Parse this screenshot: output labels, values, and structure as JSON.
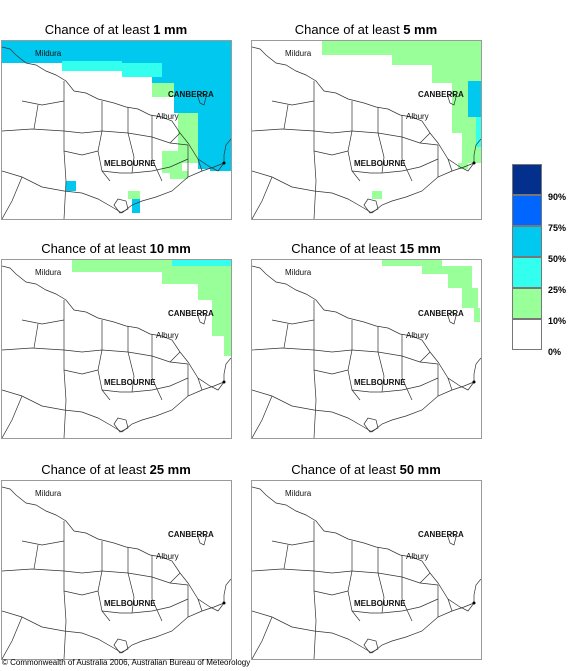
{
  "panels": [
    {
      "prefix": "Chance of at least",
      "amount": "1 mm",
      "level": 4
    },
    {
      "prefix": "Chance of at least",
      "amount": "5 mm",
      "level": 3
    },
    {
      "prefix": "Chance of at least",
      "amount": "10 mm",
      "level": 2
    },
    {
      "prefix": "Chance of at least",
      "amount": "15 mm",
      "level": 1
    },
    {
      "prefix": "Chance of at least",
      "amount": "25 mm",
      "level": 0
    },
    {
      "prefix": "Chance of at least",
      "amount": "50 mm",
      "level": 0
    }
  ],
  "places": {
    "mildura": "Mildura",
    "canberra": "CANBERRA",
    "albury": "Albury",
    "melbourne": "MELBOURNE"
  },
  "legend": {
    "labels": [
      "90%",
      "75%",
      "50%",
      "25%",
      "10%",
      "0%"
    ],
    "colors": [
      "#02308c",
      "#0066ff",
      "#00c8ee",
      "#33ffee",
      "#99ff99",
      "#ffffff"
    ]
  },
  "footer": "© Commonwealth of Australia 2006, Australian Bureau of Meteorology"
}
